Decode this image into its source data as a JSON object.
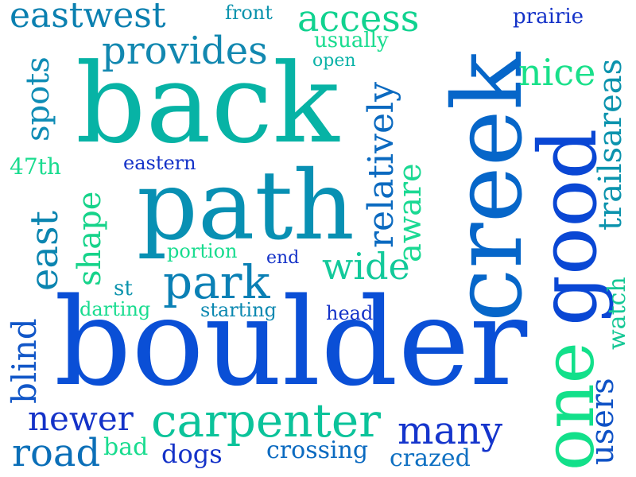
{
  "words": [
    {
      "text": "boulder",
      "color": "#0a4fd6",
      "vertical": false
    },
    {
      "text": "back",
      "color": "#07b3a5",
      "vertical": false
    },
    {
      "text": "path",
      "color": "#0890b3",
      "vertical": false
    },
    {
      "text": "creek",
      "color": "#0666c9",
      "vertical": true
    },
    {
      "text": "good",
      "color": "#0a47d4",
      "vertical": true
    },
    {
      "text": "one",
      "color": "#12e08a",
      "vertical": true
    },
    {
      "text": "carpenter",
      "color": "#0bc39a",
      "vertical": false
    },
    {
      "text": "park",
      "color": "#0a80b5",
      "vertical": false
    },
    {
      "text": "provides",
      "color": "#1288b0",
      "vertical": false
    },
    {
      "text": "access",
      "color": "#10d28f",
      "vertical": false
    },
    {
      "text": "eastwest",
      "color": "#0b80b0",
      "vertical": false
    },
    {
      "text": "nice",
      "color": "#19e08a",
      "vertical": false
    },
    {
      "text": "many",
      "color": "#1535cc",
      "vertical": false
    },
    {
      "text": "newer",
      "color": "#1432c8",
      "vertical": false
    },
    {
      "text": "road",
      "color": "#0b6fb8",
      "vertical": false
    },
    {
      "text": "wide",
      "color": "#12c99a",
      "vertical": false
    },
    {
      "text": "east",
      "color": "#0b85b0",
      "vertical": true
    },
    {
      "text": "spots",
      "color": "#0e8cb5",
      "vertical": true
    },
    {
      "text": "shape",
      "color": "#16d38a",
      "vertical": true
    },
    {
      "text": "relatively",
      "color": "#0b6ac0",
      "vertical": true
    },
    {
      "text": "aware",
      "color": "#1bd993",
      "vertical": true
    },
    {
      "text": "trailsareas",
      "color": "#0b93ad",
      "vertical": true
    },
    {
      "text": "blind",
      "color": "#1257c8",
      "vertical": true
    },
    {
      "text": "users",
      "color": "#0f52c6",
      "vertical": true
    },
    {
      "text": "watch",
      "color": "#16c896",
      "vertical": true
    },
    {
      "text": "crossing",
      "color": "#0b6ac0",
      "vertical": false
    },
    {
      "text": "crazed",
      "color": "#0f70c2",
      "vertical": false
    },
    {
      "text": "dogs",
      "color": "#1432c8",
      "vertical": false
    },
    {
      "text": "bad",
      "color": "#19dc8f",
      "vertical": false
    },
    {
      "text": "usually",
      "color": "#19dc8f",
      "vertical": false
    },
    {
      "text": "front",
      "color": "#0b93ad",
      "vertical": false
    },
    {
      "text": "prairie",
      "color": "#1432c8",
      "vertical": false
    },
    {
      "text": "open",
      "color": "#0bb3a8",
      "vertical": false
    },
    {
      "text": "47th",
      "color": "#19dc8f",
      "vertical": false
    },
    {
      "text": "eastern",
      "color": "#1432c8",
      "vertical": false
    },
    {
      "text": "portion",
      "color": "#19dc8f",
      "vertical": false
    },
    {
      "text": "end",
      "color": "#1432c8",
      "vertical": false
    },
    {
      "text": "st",
      "color": "#0b93ad",
      "vertical": false
    },
    {
      "text": "darting",
      "color": "#19dc8f",
      "vertical": false
    },
    {
      "text": "starting",
      "color": "#0b88b0",
      "vertical": false
    },
    {
      "text": "head",
      "color": "#1432c8",
      "vertical": false
    }
  ]
}
